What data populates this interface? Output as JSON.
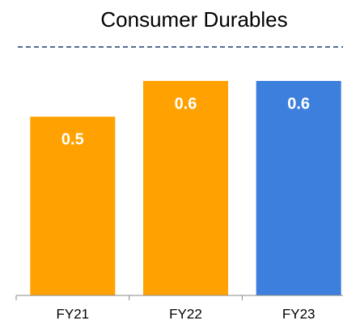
{
  "chart_data": {
    "type": "bar",
    "title": "Consumer Durables",
    "categories": [
      "FY21",
      "FY22",
      "FY23"
    ],
    "values": [
      0.5,
      0.6,
      0.6
    ],
    "colors": [
      "#ffa100",
      "#ffa100",
      "#3c7fdc"
    ]
  }
}
